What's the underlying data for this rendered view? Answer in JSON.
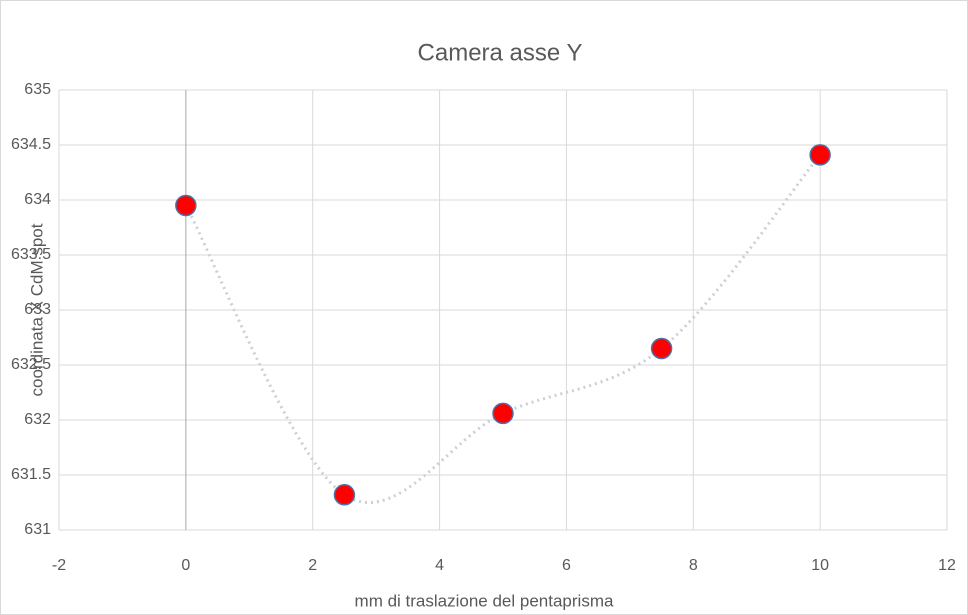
{
  "chart_data": {
    "type": "scatter",
    "title": "Camera asse Y",
    "x_label": "mm di traslazione del pentaprisma",
    "y_label": "coordinata X CdM spot",
    "series": [
      {
        "color": "#ff0000",
        "line_color": "#c9d0d8",
        "x": [
          0,
          2.5,
          5,
          7.5,
          10
        ],
        "values": [
          633.95,
          631.32,
          632.06,
          632.65,
          634.41
        ]
      }
    ],
    "xlim": [
      -2,
      12
    ],
    "xticks": [
      -2,
      0,
      2,
      4,
      6,
      8,
      10,
      12
    ],
    "ylim": [
      631,
      635
    ],
    "yticks": [
      631,
      631.5,
      632,
      632.5,
      633,
      633.5,
      634,
      634.5,
      635
    ],
    "grid": true,
    "smooth": true
  }
}
